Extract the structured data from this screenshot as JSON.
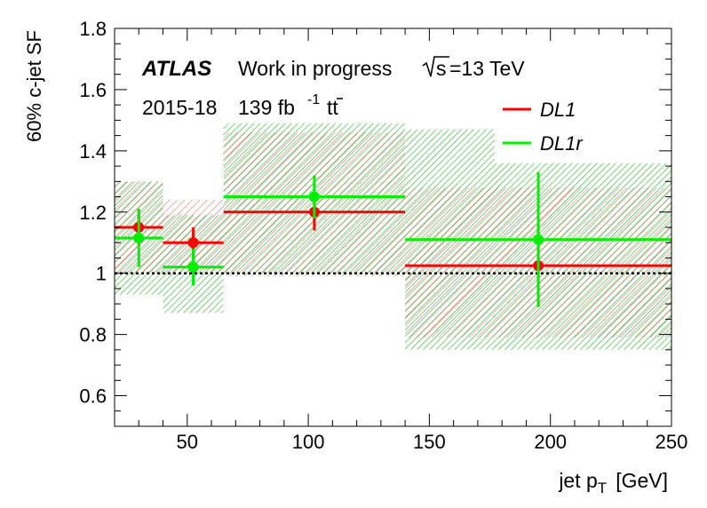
{
  "chart_data": {
    "type": "scatter",
    "title": "",
    "xlabel": "jet p",
    "xlabel_sub": "T",
    "xlabel_unit": "[GeV]",
    "ylabel": "60% c-jet SF",
    "xlim": [
      20,
      250
    ],
    "ylim": [
      0.5,
      1.8
    ],
    "xticks": [
      50,
      100,
      150,
      200,
      250
    ],
    "yticks": [
      0.6,
      0.8,
      1,
      1.2,
      1.4,
      1.6,
      1.8
    ],
    "reference_line": 1.0,
    "annotations": {
      "experiment": "ATLAS",
      "status": "Work in progress",
      "energy_root": "s",
      "energy_value": "=13 TeV",
      "period": "2015-18",
      "lumi": "139 fb",
      "lumi_exp": "-1",
      "process": "tt"
    },
    "legend": {
      "placement": "top-right"
    },
    "series": [
      {
        "name": "DL1",
        "color": "#ff0000",
        "points": [
          {
            "x": 30,
            "xlo": 20,
            "xhi": 40,
            "y": 1.15,
            "ylo": 1.09,
            "yhi": 1.21
          },
          {
            "x": 52.5,
            "xlo": 40,
            "xhi": 65,
            "y": 1.1,
            "ylo": 1.05,
            "yhi": 1.15
          },
          {
            "x": 102.5,
            "xlo": 65,
            "xhi": 140,
            "y": 1.2,
            "ylo": 1.14,
            "yhi": 1.26
          },
          {
            "x": 195,
            "xlo": 140,
            "xhi": 250,
            "y": 1.025,
            "ylo": 0.89,
            "yhi": 1.16
          }
        ],
        "bands": [
          {
            "xlo": 20,
            "xhi": 40,
            "ylo": 1.0,
            "yhi": 1.3
          },
          {
            "xlo": 40,
            "xhi": 65,
            "ylo": 1.0,
            "yhi": 1.24
          },
          {
            "xlo": 65,
            "xhi": 140,
            "ylo": 0.99,
            "yhi": 1.46
          },
          {
            "xlo": 140,
            "xhi": 250,
            "ylo": 0.79,
            "yhi": 1.28
          }
        ]
      },
      {
        "name": "DL1r",
        "color": "#00ee00",
        "points": [
          {
            "x": 30,
            "xlo": 20,
            "xhi": 40,
            "y": 1.115,
            "ylo": 1.02,
            "yhi": 1.21
          },
          {
            "x": 52.5,
            "xlo": 40,
            "xhi": 65,
            "y": 1.02,
            "ylo": 0.96,
            "yhi": 1.08
          },
          {
            "x": 102.5,
            "xlo": 65,
            "xhi": 140,
            "y": 1.25,
            "ylo": 1.18,
            "yhi": 1.32
          },
          {
            "x": 195,
            "xlo": 140,
            "xhi": 250,
            "y": 1.11,
            "ylo": 0.89,
            "yhi": 1.33
          }
        ],
        "bands": [
          {
            "xlo": 20,
            "xhi": 40,
            "ylo": 0.93,
            "yhi": 1.3
          },
          {
            "xlo": 40,
            "xhi": 65,
            "ylo": 0.87,
            "yhi": 1.19
          },
          {
            "xlo": 65,
            "xhi": 140,
            "ylo": 1.0,
            "yhi": 1.49
          },
          {
            "xlo": 140,
            "xhi": 177,
            "ylo": 0.75,
            "yhi": 1.47
          },
          {
            "xlo": 177,
            "xhi": 250,
            "ylo": 0.75,
            "yhi": 1.36
          }
        ]
      }
    ]
  }
}
